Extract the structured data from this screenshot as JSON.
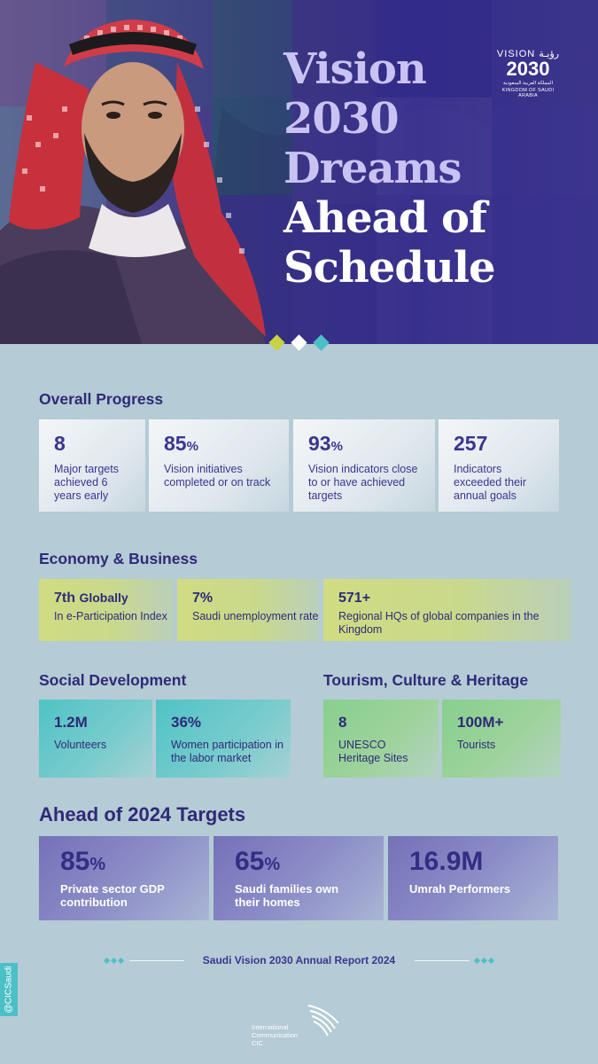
{
  "hero": {
    "title_line1": "Vision",
    "title_line2": "2030",
    "title_line3": "Dreams",
    "title_line4": "Ahead of",
    "title_line5": "Schedule"
  },
  "logo": {
    "top": "VISION رؤيـة",
    "year": "2030",
    "arabic": "المملكة العربية السعودية",
    "english": "KINGDOM OF SAUDI ARABIA"
  },
  "overall_progress": {
    "title": "Overall Progress",
    "cards": [
      {
        "value": "8",
        "unit": "",
        "desc": "Major targets achieved 6 years early"
      },
      {
        "value": "85",
        "unit": "%",
        "desc": "Vision initiatives completed or on track"
      },
      {
        "value": "93",
        "unit": "%",
        "desc": "Vision indicators close to or have achieved targets"
      },
      {
        "value": "257",
        "unit": "",
        "desc": "Indicators exceeded their annual goals"
      }
    ]
  },
  "economy": {
    "title": "Economy & Business",
    "cards": [
      {
        "value": "7th",
        "suffix": "Globally",
        "desc": "In e-Participation Index"
      },
      {
        "value": "7%",
        "suffix": "",
        "desc": "Saudi unemployment rate"
      },
      {
        "value": "571+",
        "suffix": "",
        "desc": "Regional HQs of global companies in the Kingdom"
      }
    ]
  },
  "social": {
    "title": "Social Development",
    "cards": [
      {
        "value": "1.2M",
        "desc": "Volunteers"
      },
      {
        "value": "36%",
        "desc": "Women participation in the labor market"
      }
    ]
  },
  "tourism": {
    "title": "Tourism, Culture & Heritage",
    "cards": [
      {
        "value": "8",
        "desc": "UNESCO Heritage Sites"
      },
      {
        "value": "100M+",
        "desc": "Tourists"
      }
    ]
  },
  "targets_2024": {
    "title": "Ahead of 2024 Targets",
    "cards": [
      {
        "value": "85",
        "unit": "%",
        "desc": "Private sector GDP contribution"
      },
      {
        "value": "65",
        "unit": "%",
        "desc": "Saudi families own their homes"
      },
      {
        "value": "16.9M",
        "unit": "",
        "desc": "Umrah Performers"
      }
    ]
  },
  "footer": {
    "report": "Saudi Vision 2030 Annual Report 2024",
    "handle": "@CICSaudi",
    "org_line1": "International",
    "org_line2": "Communication",
    "org_line3": "CIC"
  },
  "colors": {
    "hero_bg": "#3a3686",
    "page_bg": "#b5cbd5",
    "title_text": "#2f2a78",
    "accent_lime": "#c9d98c",
    "accent_teal": "#4bc0c6",
    "accent_green": "#87cf8f",
    "accent_purple": "#7472b8"
  }
}
